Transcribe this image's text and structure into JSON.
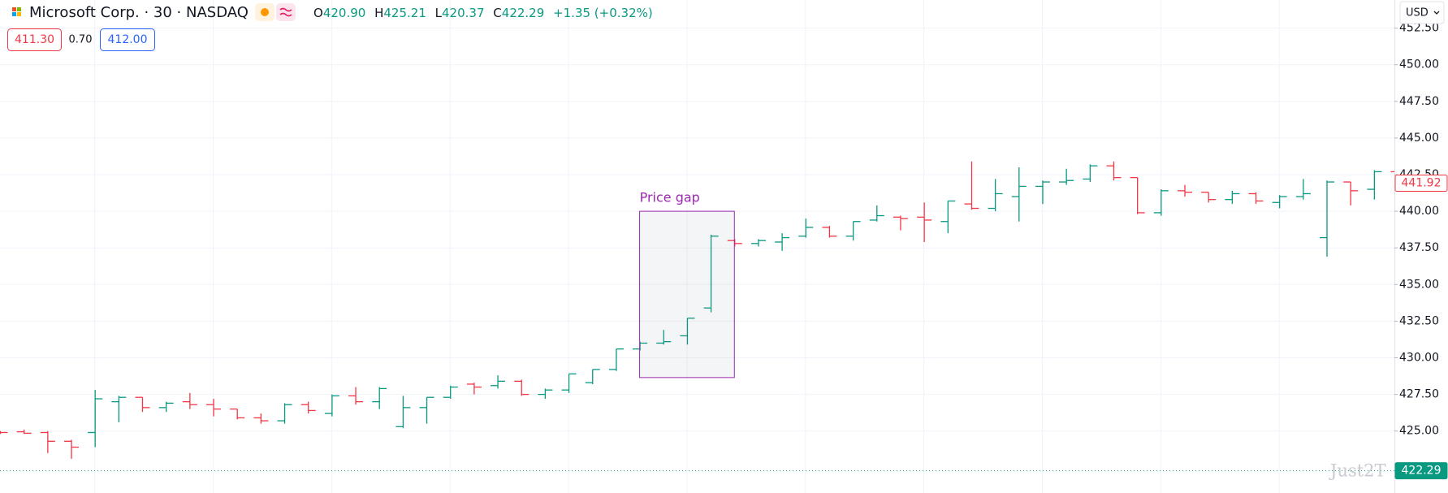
{
  "chart_data": {
    "type": "ohlc",
    "header": {
      "symbol": "Microsoft Corp. · 30 · NASDAQ",
      "o_label": "O",
      "o": "420.90",
      "h_label": "H",
      "h": "425.21",
      "l_label": "L",
      "l": "420.37",
      "c_label": "C",
      "c": "422.29",
      "change": "+1.35 (+0.32%)"
    },
    "quote": {
      "bid": "411.30",
      "spread": "0.70",
      "ask": "412.00"
    },
    "currency": "USD",
    "watermark": "Just2T",
    "open": [
      424.95,
      424.95,
      424.9,
      424.3,
      424.9,
      427.0,
      427.3,
      426.6,
      427.0,
      426.8,
      426.5,
      425.9,
      425.7,
      426.8,
      426.2,
      427.4,
      427.0,
      425.3,
      426.6,
      427.3,
      428.2,
      428.1,
      428.4,
      427.5,
      427.8,
      428.3,
      429.2,
      430.6,
      431.0,
      431.5,
      433.4,
      438.0,
      437.8,
      437.9,
      438.3,
      438.9,
      438.3,
      439.4,
      439.6,
      439.6,
      439.3,
      440.5,
      440.2,
      441.0,
      441.7,
      442.0,
      442.2,
      443.1,
      442.3,
      439.9,
      441.4,
      441.3,
      440.8,
      441.2,
      440.6,
      441.0,
      438.2,
      442.0,
      441.5,
      442.7
    ],
    "high": [
      425.0,
      425.1,
      425.0,
      424.4,
      427.8,
      427.4,
      427.3,
      427.0,
      427.6,
      427.2,
      426.5,
      426.2,
      426.9,
      427.0,
      427.5,
      428.0,
      428.0,
      427.4,
      427.3,
      428.1,
      428.3,
      428.8,
      428.5,
      427.9,
      428.9,
      429.2,
      430.6,
      431.1,
      431.9,
      432.7,
      438.4,
      438.1,
      438.1,
      438.5,
      439.5,
      439.0,
      439.3,
      440.4,
      439.7,
      440.6,
      440.7,
      443.4,
      442.2,
      443.0,
      442.1,
      442.9,
      443.2,
      443.4,
      442.3,
      441.5,
      441.8,
      441.3,
      441.4,
      441.3,
      441.1,
      442.2,
      442.1,
      442.0,
      442.8,
      442.8
    ],
    "low": [
      424.8,
      424.8,
      423.5,
      423.1,
      423.9,
      425.6,
      426.3,
      426.3,
      426.5,
      426.0,
      425.8,
      425.5,
      425.5,
      426.2,
      426.0,
      426.8,
      426.5,
      425.2,
      425.5,
      427.2,
      427.5,
      427.9,
      427.4,
      427.2,
      427.6,
      428.2,
      429.1,
      430.5,
      430.9,
      430.9,
      433.1,
      437.6,
      437.6,
      437.3,
      438.2,
      438.2,
      438.0,
      439.3,
      438.7,
      437.9,
      438.5,
      440.1,
      440.0,
      439.3,
      440.5,
      441.8,
      442.0,
      442.1,
      439.8,
      439.7,
      441.0,
      440.6,
      440.5,
      440.5,
      440.2,
      440.8,
      436.9,
      440.4,
      440.8,
      441.8
    ],
    "close": [
      424.9,
      424.85,
      424.3,
      423.9,
      427.2,
      427.3,
      426.6,
      426.9,
      426.8,
      426.5,
      425.9,
      425.7,
      426.8,
      426.4,
      427.4,
      427.0,
      427.9,
      426.6,
      427.3,
      428.0,
      428.0,
      428.4,
      427.5,
      427.8,
      428.9,
      429.2,
      430.6,
      431.0,
      431.1,
      432.7,
      438.3,
      437.8,
      438.0,
      438.2,
      438.9,
      438.3,
      439.3,
      439.7,
      439.5,
      439.4,
      440.7,
      440.2,
      441.2,
      441.7,
      442.0,
      442.1,
      443.1,
      442.3,
      439.9,
      441.4,
      441.3,
      440.8,
      441.2,
      440.7,
      441.0,
      441.2,
      442.0,
      441.4,
      442.7,
      441.92
    ],
    "up_color": "#089981",
    "down_color": "#f23645",
    "ylim": [
      420.77,
      454.42
    ],
    "yticks": [
      {
        "value": 425,
        "label": "425.00"
      },
      {
        "value": 427.5,
        "label": "427.50"
      },
      {
        "value": 430,
        "label": "430.00"
      },
      {
        "value": 432.5,
        "label": "432.50"
      },
      {
        "value": 435,
        "label": "435.00"
      },
      {
        "value": 437.5,
        "label": "437.50"
      },
      {
        "value": 440,
        "label": "440.00"
      },
      {
        "value": 442.5,
        "label": "442.50"
      },
      {
        "value": 445,
        "label": "445.00"
      },
      {
        "value": 447.5,
        "label": "447.50"
      },
      {
        "value": 450,
        "label": "450.00"
      },
      {
        "value": 452.5,
        "label": "452.50"
      }
    ],
    "grid": true,
    "annotation": {
      "text": "Price gap",
      "start_bar": 27,
      "end_bar": 31,
      "top": 440.0,
      "bottom": 428.65,
      "color": "#9c27b0"
    },
    "price_labels": [
      {
        "value": 441.92,
        "label": "441.92",
        "color": "#f23645"
      },
      {
        "value": 422.29,
        "label": "422.29",
        "color": "#089981"
      }
    ]
  }
}
